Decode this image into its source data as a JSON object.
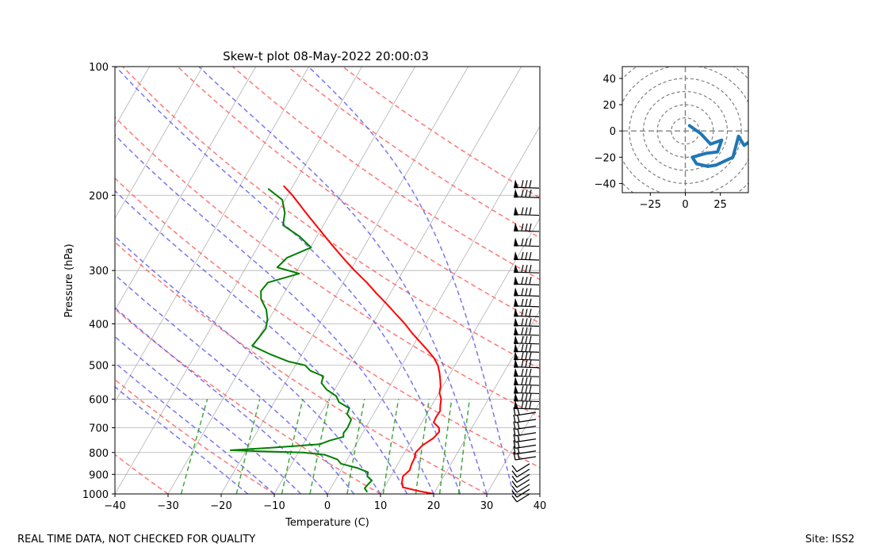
{
  "chart_data": [
    {
      "type": "skewt",
      "title": "Skew-t plot 08-May-2022 20:00:03",
      "xlabel": "Temperature (C)",
      "ylabel": "Pressure (hPa)",
      "xlim": [
        -40,
        40
      ],
      "ylim": [
        1000,
        100
      ],
      "x_ticks": [
        -40,
        -30,
        -20,
        -10,
        0,
        10,
        20,
        30,
        40
      ],
      "y_ticks": [
        100,
        200,
        300,
        400,
        500,
        600,
        700,
        800,
        900,
        1000
      ],
      "grid": true,
      "series": [
        {
          "name": "temperature",
          "color": "#ff0000",
          "points": [
            [
              1000,
              20.1
            ],
            [
              985,
              17
            ],
            [
              965,
              13.5
            ],
            [
              940,
              12.8
            ],
            [
              910,
              12.3
            ],
            [
              880,
              12.9
            ],
            [
              850,
              12.6
            ],
            [
              825,
              12.5
            ],
            [
              800,
              12.1
            ],
            [
              770,
              12.6
            ],
            [
              740,
              13.9
            ],
            [
              715,
              14.3
            ],
            [
              700,
              13.8
            ],
            [
              680,
              12.2
            ],
            [
              660,
              12.1
            ],
            [
              640,
              12.2
            ],
            [
              620,
              11.6
            ],
            [
              600,
              11.1
            ],
            [
              580,
              10.1
            ],
            [
              560,
              9.6
            ],
            [
              540,
              8.8
            ],
            [
              520,
              7.9
            ],
            [
              500,
              6.8
            ],
            [
              480,
              5.2
            ],
            [
              460,
              3.1
            ],
            [
              440,
              0.8
            ],
            [
              420,
              -1.6
            ],
            [
              400,
              -3.9
            ],
            [
              380,
              -6.6
            ],
            [
              360,
              -9.4
            ],
            [
              340,
              -12.5
            ],
            [
              320,
              -15.6
            ],
            [
              300,
              -19.2
            ],
            [
              280,
              -22.8
            ],
            [
              260,
              -26.5
            ],
            [
              240,
              -30.4
            ],
            [
              220,
              -34.6
            ],
            [
              200,
              -39.1
            ],
            [
              190,
              -41.8
            ]
          ]
        },
        {
          "name": "dewpoint",
          "color": "#008000",
          "points": [
            [
              990,
              7.3
            ],
            [
              970,
              6.4
            ],
            [
              950,
              6.6
            ],
            [
              930,
              6.9
            ],
            [
              910,
              5.6
            ],
            [
              890,
              5.3
            ],
            [
              870,
              2.9
            ],
            [
              850,
              -0.7
            ],
            [
              830,
              -1.9
            ],
            [
              810,
              -4.7
            ],
            [
              800,
              -9
            ],
            [
              795,
              -17
            ],
            [
              790,
              -23
            ],
            [
              780,
              -16
            ],
            [
              765,
              -6.8
            ],
            [
              750,
              -5.4
            ],
            [
              735,
              -3.2
            ],
            [
              720,
              -3.6
            ],
            [
              700,
              -3.4
            ],
            [
              685,
              -3.5
            ],
            [
              670,
              -3.6
            ],
            [
              650,
              -5
            ],
            [
              630,
              -5.2
            ],
            [
              610,
              -7.8
            ],
            [
              590,
              -9
            ],
            [
              570,
              -11.5
            ],
            [
              550,
              -13.2
            ],
            [
              530,
              -13.6
            ],
            [
              515,
              -16.6
            ],
            [
              500,
              -18.2
            ],
            [
              490,
              -21.7
            ],
            [
              470,
              -26.2
            ],
            [
              450,
              -30.3
            ],
            [
              430,
              -29.9
            ],
            [
              410,
              -29.6
            ],
            [
              390,
              -30.3
            ],
            [
              370,
              -31.6
            ],
            [
              350,
              -33.7
            ],
            [
              335,
              -34.6
            ],
            [
              320,
              -34.2
            ],
            [
              305,
              -29.3
            ],
            [
              295,
              -34.1
            ],
            [
              280,
              -33.3
            ],
            [
              265,
              -29.9
            ],
            [
              250,
              -33.2
            ],
            [
              235,
              -37.6
            ],
            [
              220,
              -38.6
            ],
            [
              205,
              -40.5
            ],
            [
              193,
              -44.4
            ]
          ]
        }
      ],
      "wind_barbs_pressures_hpa": [
        1000,
        975,
        950,
        925,
        900,
        875,
        850,
        825,
        800,
        775,
        750,
        725,
        700,
        675,
        650,
        625,
        600,
        575,
        550,
        525,
        500,
        480,
        460,
        440,
        420,
        400,
        380,
        360,
        340,
        320,
        300,
        280,
        260,
        240,
        220,
        200,
        190
      ]
    },
    {
      "type": "hodograph",
      "xlim": [
        -45,
        45
      ],
      "ylim": [
        -47,
        49
      ],
      "x_ticks": [
        -25,
        0,
        25
      ],
      "y_ticks": [
        -40,
        -20,
        0,
        20,
        40
      ],
      "rings": [
        10,
        20,
        30,
        40,
        50,
        60
      ],
      "series": [
        {
          "name": "wind",
          "color": "#1f77b4",
          "points": [
            [
              3,
              4
            ],
            [
              11,
              -2
            ],
            [
              18,
              -10
            ],
            [
              26,
              -7
            ],
            [
              23,
              -16
            ],
            [
              15,
              -17
            ],
            [
              5,
              -20
            ],
            [
              8,
              -25
            ],
            [
              16,
              -27
            ],
            [
              22,
              -26
            ],
            [
              34,
              -20
            ],
            [
              38,
              -4
            ],
            [
              42,
              -11
            ],
            [
              46,
              -8
            ],
            [
              49,
              -20
            ]
          ]
        }
      ]
    }
  ],
  "footer": {
    "left": "REAL TIME DATA, NOT CHECKED FOR QUALITY",
    "right": "Site: ISS2"
  }
}
